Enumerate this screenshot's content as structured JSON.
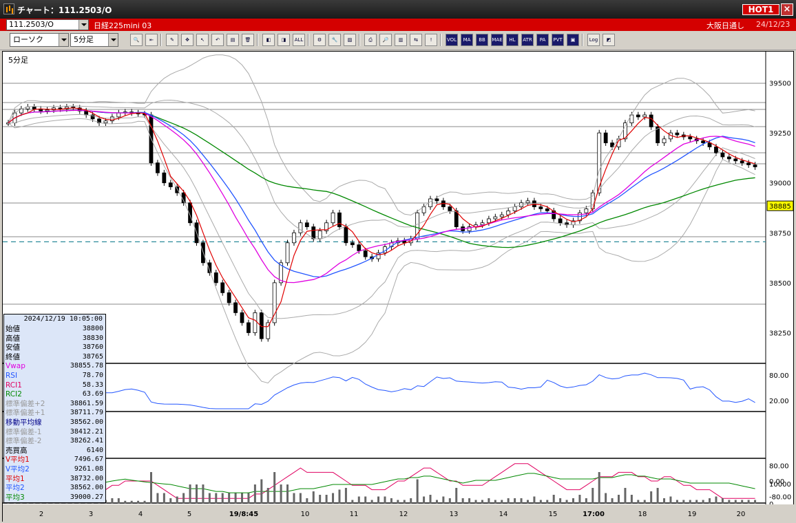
{
  "window": {
    "title": "チャート：111.2503/O",
    "hot_badge": "HOT1",
    "close_label": "×"
  },
  "infobar": {
    "symbol": "111.2503/O",
    "instrument": "日経225mini 03",
    "exchange": "大阪日通し",
    "date": "24/12/23"
  },
  "toolbar": {
    "chart_type": "ローソク",
    "timeframe": "5分足",
    "buttons": [
      {
        "name": "zoom-in-icon",
        "text": "🔍"
      },
      {
        "name": "scroll-icon",
        "text": "⇤"
      },
      {
        "name": "draw-line-icon",
        "text": "✎"
      },
      {
        "name": "tools-icon",
        "text": "✥"
      },
      {
        "name": "cursor-icon",
        "text": "↖"
      },
      {
        "name": "undo-icon",
        "text": "↶"
      },
      {
        "name": "note-icon",
        "text": "▤"
      },
      {
        "name": "delete-icon",
        "text": "🗑"
      },
      {
        "name": "erase-left-icon",
        "text": "◧"
      },
      {
        "name": "erase-right-icon",
        "text": "◨"
      },
      {
        "name": "erase-all-icon",
        "text": "ALL"
      },
      {
        "name": "settings-icon",
        "text": "⚙"
      },
      {
        "name": "wrench-icon",
        "text": "🔧"
      },
      {
        "name": "color-icon",
        "text": "▨"
      },
      {
        "name": "print-icon",
        "text": "⎙"
      },
      {
        "name": "search-chart-icon",
        "text": "🔎"
      },
      {
        "name": "indicator-icon",
        "text": "▥"
      },
      {
        "name": "compare-icon",
        "text": "⇆"
      },
      {
        "name": "alert-icon",
        "text": "!"
      },
      {
        "name": "volume-icon",
        "text": "VOL"
      },
      {
        "name": "ma-icon",
        "text": "MA"
      },
      {
        "name": "bb-icon",
        "text": "BB"
      },
      {
        "name": "mae-icon",
        "text": "MAE"
      },
      {
        "name": "hl-icon",
        "text": "HL"
      },
      {
        "name": "atr-icon",
        "text": "ATR"
      },
      {
        "name": "pa-icon",
        "text": "PA"
      },
      {
        "name": "pvt-icon",
        "text": "PVT"
      },
      {
        "name": "frame-icon",
        "text": "▣"
      },
      {
        "name": "log-icon",
        "text": "Log"
      },
      {
        "name": "window-icon",
        "text": "◩"
      }
    ]
  },
  "chart": {
    "timeframe_label": "5分足",
    "colors": {
      "red_ma": "#e00000",
      "blue_ma": "#2255ff",
      "green_ma": "#008800",
      "magenta": "#e000e0",
      "bands": "#aaaaaa"
    }
  },
  "chart_data": {
    "type": "candlestick",
    "price_axis": {
      "range": [
        38100,
        39650
      ],
      "ticks": [
        "39500",
        "39250",
        "39000",
        "38750",
        "38500",
        "38250"
      ]
    },
    "current_price": "38885",
    "reference_price": 38705,
    "x_tick_labels": [
      "2",
      "3",
      "4",
      "5",
      "19/8:45",
      "10",
      "11",
      "12",
      "13",
      "14",
      "15",
      "17:00",
      "18",
      "19",
      "20"
    ],
    "rsi_panel": {
      "ticks": [
        "80.00",
        "20.00"
      ]
    },
    "rci_panel": {
      "ticks": [
        "80.00",
        "0.00",
        "-80.00"
      ]
    },
    "volume_panel": {
      "ticks": [
        "10000",
        "0"
      ]
    },
    "close_series": [
      39300,
      39350,
      39370,
      39380,
      39370,
      39360,
      39365,
      39375,
      39370,
      39380,
      39375,
      39360,
      39340,
      39320,
      39300,
      39310,
      39330,
      39350,
      39355,
      39350,
      39345,
      39340,
      39100,
      39050,
      39000,
      38980,
      38950,
      38900,
      38800,
      38700,
      38600,
      38550,
      38500,
      38450,
      38400,
      38350,
      38300,
      38250,
      38350,
      38220,
      38300,
      38500,
      38600,
      38700,
      38750,
      38800,
      38780,
      38720,
      38760,
      38800,
      38850,
      38780,
      38700,
      38690,
      38660,
      38630,
      38620,
      38650,
      38680,
      38700,
      38710,
      38700,
      38720,
      38850,
      38880,
      38920,
      38910,
      38880,
      38860,
      38780,
      38760,
      38780,
      38790,
      38800,
      38820,
      38830,
      38840,
      38860,
      38880,
      38900,
      38910,
      38880,
      38870,
      38860,
      38820,
      38800,
      38790,
      38810,
      38850,
      38870,
      38950,
      39250,
      39200,
      39180,
      39220,
      39300,
      39340,
      39330,
      39340,
      39280,
      39200,
      39220,
      39250,
      39240,
      39230,
      39220,
      39210,
      39200,
      39180,
      39150,
      39130,
      39120,
      39110,
      39100,
      39090,
      39080
    ]
  },
  "data_panel": {
    "datetime": "2024/12/19 10:05:00",
    "rows": [
      {
        "label": "始値",
        "value": "38800",
        "color": "#000000"
      },
      {
        "label": "高値",
        "value": "38830",
        "color": "#000000"
      },
      {
        "label": "安値",
        "value": "38760",
        "color": "#000000"
      },
      {
        "label": "終値",
        "value": "38765",
        "color": "#000000"
      },
      {
        "label": "Vwap",
        "value": "38855.78",
        "color": "#e000e0"
      },
      {
        "label": "RSI",
        "value": "78.70",
        "color": "#2255ff"
      },
      {
        "label": "RCI1",
        "value": "58.33",
        "color": "#e00060"
      },
      {
        "label": "RCI2",
        "value": "63.69",
        "color": "#008800"
      },
      {
        "label": "標準偏差+2",
        "value": "38861.59",
        "color": "#999999"
      },
      {
        "label": "標準偏差+1",
        "value": "38711.79",
        "color": "#999999"
      },
      {
        "label": "移動平均線",
        "value": "38562.00",
        "color": "#000088"
      },
      {
        "label": "標準偏差-1",
        "value": "38412.21",
        "color": "#999999"
      },
      {
        "label": "標準偏差-2",
        "value": "38262.41",
        "color": "#999999"
      },
      {
        "label": "売買高",
        "value": "6140",
        "color": "#000000"
      },
      {
        "label": "V平均1",
        "value": "7496.67",
        "color": "#e00000"
      },
      {
        "label": "V平均2",
        "value": "9261.08",
        "color": "#2255ff"
      },
      {
        "label": "平均1",
        "value": "38732.00",
        "color": "#e00000"
      },
      {
        "label": "平均2",
        "value": "38562.00",
        "color": "#2255ff"
      },
      {
        "label": "平均3",
        "value": "39000.27",
        "color": "#008800"
      }
    ]
  }
}
